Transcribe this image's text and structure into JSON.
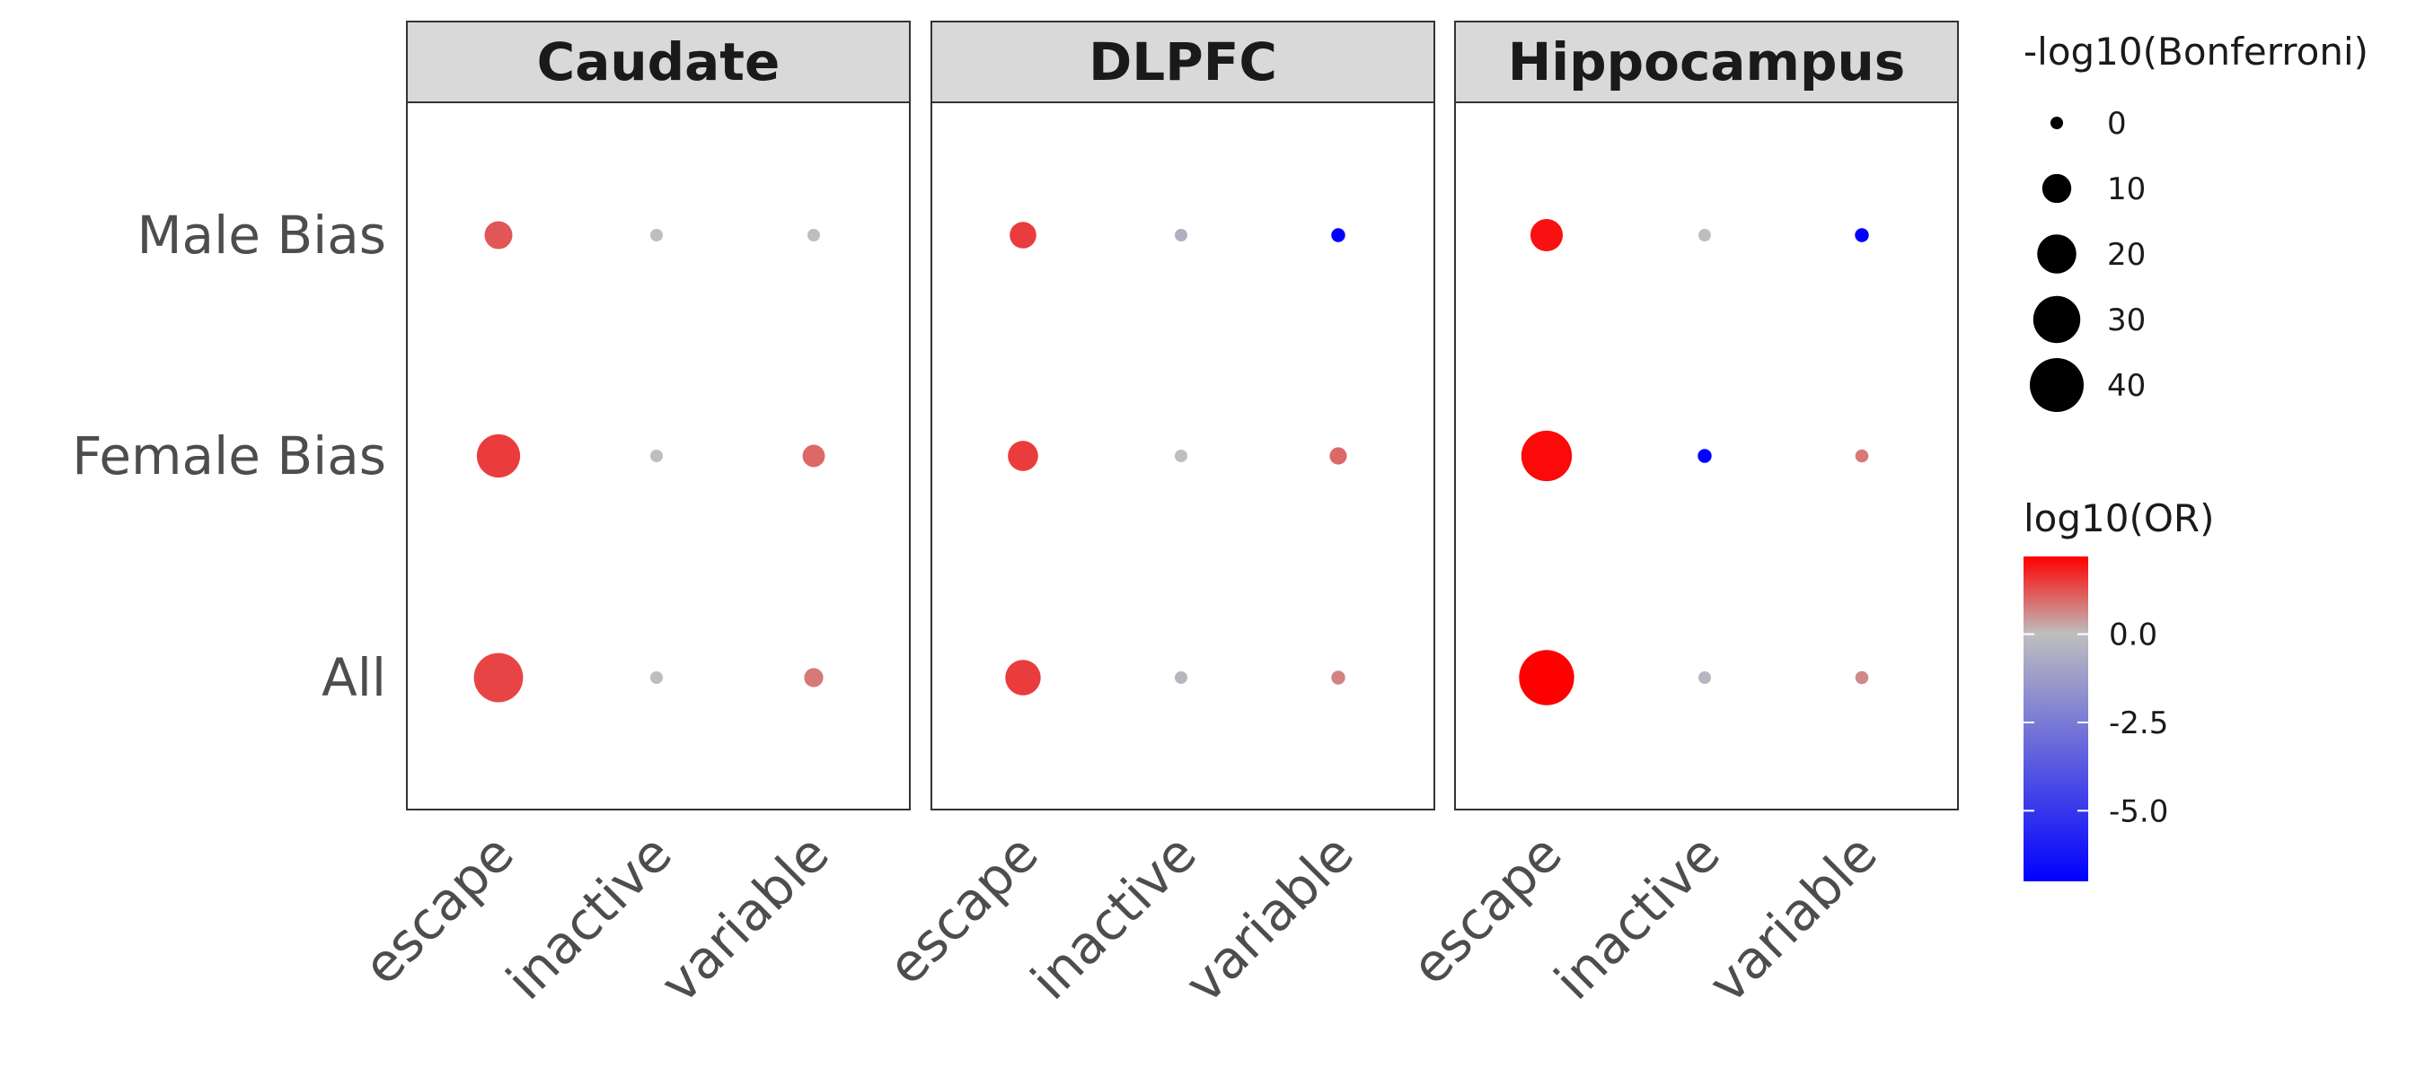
{
  "chart_data": {
    "type": "scatter",
    "facets": [
      "Caudate",
      "DLPFC",
      "Hippocampus"
    ],
    "x_categories": [
      "escape",
      "inactive",
      "variable"
    ],
    "y_categories": [
      "All",
      "Female Bias",
      "Male Bias"
    ],
    "size_legend": {
      "title": "-log10(Bonferroni)",
      "breaks": [
        0,
        10,
        20,
        30,
        40
      ],
      "labels": [
        "0",
        "10",
        "20",
        "30",
        "40"
      ]
    },
    "color_legend": {
      "title": "log10(OR)",
      "range": [
        -7,
        2.2
      ],
      "breaks": [
        0,
        -2.5,
        -5
      ],
      "labels": [
        "0.0",
        "-2.5",
        "-5.0"
      ],
      "low_color": "#0000ff",
      "mid_color": "#bebebe",
      "high_color": "#ff0000"
    },
    "points": [
      {
        "facet": "Caudate",
        "x": "escape",
        "y": "Male Bias",
        "size": 9,
        "color": 1.2
      },
      {
        "facet": "Caudate",
        "x": "inactive",
        "y": "Male Bias",
        "size": 0,
        "color": 0.0
      },
      {
        "facet": "Caudate",
        "x": "variable",
        "y": "Male Bias",
        "size": 0,
        "color": 0.0
      },
      {
        "facet": "Caudate",
        "x": "escape",
        "y": "Female Bias",
        "size": 25,
        "color": 1.5
      },
      {
        "facet": "Caudate",
        "x": "inactive",
        "y": "Female Bias",
        "size": 0,
        "color": 0.0
      },
      {
        "facet": "Caudate",
        "x": "variable",
        "y": "Female Bias",
        "size": 5,
        "color": 1.0
      },
      {
        "facet": "Caudate",
        "x": "escape",
        "y": "All",
        "size": 33,
        "color": 1.4
      },
      {
        "facet": "Caudate",
        "x": "inactive",
        "y": "All",
        "size": 0,
        "color": 0.0
      },
      {
        "facet": "Caudate",
        "x": "variable",
        "y": "All",
        "size": 3,
        "color": 0.8
      },
      {
        "facet": "DLPFC",
        "x": "escape",
        "y": "Male Bias",
        "size": 8,
        "color": 1.5
      },
      {
        "facet": "DLPFC",
        "x": "inactive",
        "y": "Male Bias",
        "size": 0,
        "color": -0.5
      },
      {
        "facet": "DLPFC",
        "x": "variable",
        "y": "Male Bias",
        "size": 0.5,
        "color": -7.0
      },
      {
        "facet": "DLPFC",
        "x": "escape",
        "y": "Female Bias",
        "size": 11,
        "color": 1.5
      },
      {
        "facet": "DLPFC",
        "x": "inactive",
        "y": "Female Bias",
        "size": 0,
        "color": 0.0
      },
      {
        "facet": "DLPFC",
        "x": "variable",
        "y": "Female Bias",
        "size": 2,
        "color": 1.0
      },
      {
        "facet": "DLPFC",
        "x": "escape",
        "y": "All",
        "size": 16,
        "color": 1.5
      },
      {
        "facet": "DLPFC",
        "x": "inactive",
        "y": "All",
        "size": 0,
        "color": -0.3
      },
      {
        "facet": "DLPFC",
        "x": "variable",
        "y": "All",
        "size": 0.5,
        "color": 0.7
      },
      {
        "facet": "Hippocampus",
        "x": "escape",
        "y": "Male Bias",
        "size": 13,
        "color": 2.0
      },
      {
        "facet": "Hippocampus",
        "x": "inactive",
        "y": "Male Bias",
        "size": 0,
        "color": 0.0
      },
      {
        "facet": "Hippocampus",
        "x": "variable",
        "y": "Male Bias",
        "size": 0.5,
        "color": -7.0
      },
      {
        "facet": "Hippocampus",
        "x": "escape",
        "y": "Female Bias",
        "size": 35,
        "color": 2.1
      },
      {
        "facet": "Hippocampus",
        "x": "inactive",
        "y": "Female Bias",
        "size": 0.5,
        "color": -7.0
      },
      {
        "facet": "Hippocampus",
        "x": "variable",
        "y": "Female Bias",
        "size": 0.2,
        "color": 0.8
      },
      {
        "facet": "Hippocampus",
        "x": "escape",
        "y": "All",
        "size": 42,
        "color": 2.2
      },
      {
        "facet": "Hippocampus",
        "x": "inactive",
        "y": "All",
        "size": 0,
        "color": -0.3
      },
      {
        "facet": "Hippocampus",
        "x": "variable",
        "y": "All",
        "size": 0.2,
        "color": 0.6
      }
    ]
  }
}
